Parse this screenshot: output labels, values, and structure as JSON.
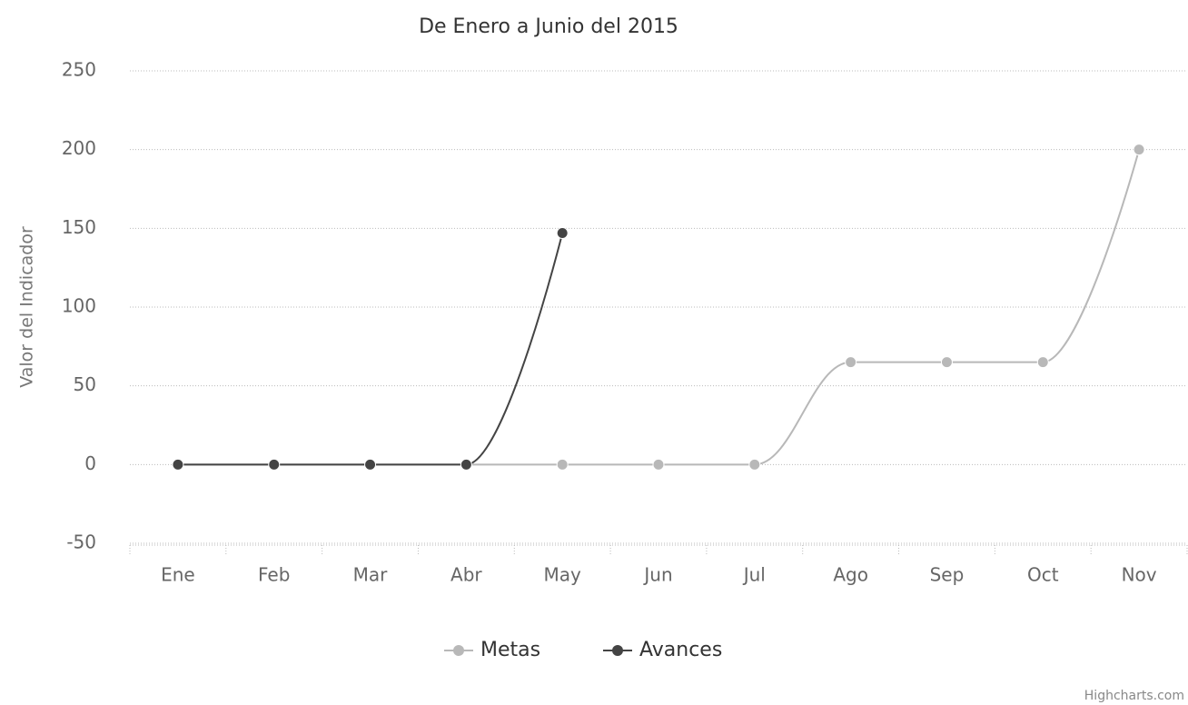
{
  "chart_data": {
    "type": "line",
    "title": "De Enero a Junio del 2015",
    "y_label": "Valor del Indicador",
    "categories": [
      "Ene",
      "Feb",
      "Mar",
      "Abr",
      "May",
      "Jun",
      "Jul",
      "Ago",
      "Sep",
      "Oct",
      "Nov"
    ],
    "series": [
      {
        "name": "Metas",
        "color": "#b8b8b8",
        "values": [
          0,
          0,
          0,
          0,
          0,
          0,
          0,
          65,
          65,
          65,
          200
        ]
      },
      {
        "name": "Avances",
        "color": "#444444",
        "values": [
          0,
          0,
          0,
          0,
          147,
          null,
          null,
          null,
          null,
          null,
          null
        ]
      }
    ],
    "ylim": [
      -50,
      250
    ],
    "yticks": [
      -50,
      0,
      50,
      100,
      150,
      200,
      250
    ],
    "grid": true,
    "legend": "bottom",
    "credits": "Highcharts.com"
  }
}
